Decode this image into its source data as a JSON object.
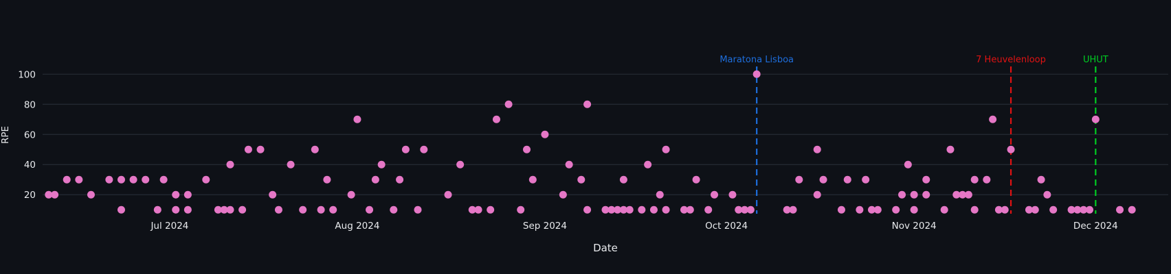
{
  "colors": {
    "background": "#0e1117",
    "grid": "#262b35",
    "tick_text": "#e8eaed",
    "axis_title_text": "#e8eaed"
  },
  "chart_data": {
    "type": "scatter",
    "title": "",
    "xlabel": "Date",
    "ylabel": "RPE",
    "legend": false,
    "grid": true,
    "marker_color": "#e577c6",
    "x_range": [
      "2024-06-10",
      "2024-12-13"
    ],
    "ylim": [
      6.0,
      106.5
    ],
    "yticks": [
      20,
      40,
      60,
      80,
      100
    ],
    "xticks": [
      {
        "date": "2024-07-01",
        "label": "Jul 2024"
      },
      {
        "date": "2024-08-01",
        "label": "Aug 2024"
      },
      {
        "date": "2024-09-01",
        "label": "Sep 2024"
      },
      {
        "date": "2024-10-01",
        "label": "Oct 2024"
      },
      {
        "date": "2024-11-01",
        "label": "Nov 2024"
      },
      {
        "date": "2024-12-01",
        "label": "Dec 2024"
      }
    ],
    "events": [
      {
        "label": "Maratona Lisboa",
        "date": "2024-10-06",
        "color": "#1e6edc"
      },
      {
        "label": "7 Heuvelenloop",
        "date": "2024-11-17",
        "color": "#e01212"
      },
      {
        "label": "UHUT",
        "date": "2024-12-01",
        "color": "#00cc22"
      }
    ],
    "points": [
      {
        "date": "2024-06-11",
        "rpe": 20
      },
      {
        "date": "2024-06-12",
        "rpe": 20
      },
      {
        "date": "2024-06-14",
        "rpe": 30
      },
      {
        "date": "2024-06-16",
        "rpe": 30
      },
      {
        "date": "2024-06-18",
        "rpe": 20
      },
      {
        "date": "2024-06-21",
        "rpe": 30
      },
      {
        "date": "2024-06-23",
        "rpe": 10
      },
      {
        "date": "2024-06-23",
        "rpe": 30
      },
      {
        "date": "2024-06-25",
        "rpe": 30
      },
      {
        "date": "2024-06-27",
        "rpe": 30
      },
      {
        "date": "2024-06-29",
        "rpe": 10
      },
      {
        "date": "2024-06-30",
        "rpe": 30
      },
      {
        "date": "2024-07-02",
        "rpe": 20
      },
      {
        "date": "2024-07-02",
        "rpe": 10
      },
      {
        "date": "2024-07-04",
        "rpe": 10
      },
      {
        "date": "2024-07-04",
        "rpe": 20
      },
      {
        "date": "2024-07-07",
        "rpe": 30
      },
      {
        "date": "2024-07-09",
        "rpe": 10
      },
      {
        "date": "2024-07-10",
        "rpe": 10
      },
      {
        "date": "2024-07-11",
        "rpe": 10
      },
      {
        "date": "2024-07-11",
        "rpe": 40
      },
      {
        "date": "2024-07-13",
        "rpe": 10
      },
      {
        "date": "2024-07-14",
        "rpe": 50
      },
      {
        "date": "2024-07-16",
        "rpe": 50
      },
      {
        "date": "2024-07-18",
        "rpe": 20
      },
      {
        "date": "2024-07-19",
        "rpe": 10
      },
      {
        "date": "2024-07-21",
        "rpe": 40
      },
      {
        "date": "2024-07-23",
        "rpe": 10
      },
      {
        "date": "2024-07-25",
        "rpe": 50
      },
      {
        "date": "2024-07-26",
        "rpe": 10
      },
      {
        "date": "2024-07-27",
        "rpe": 30
      },
      {
        "date": "2024-07-28",
        "rpe": 10
      },
      {
        "date": "2024-07-31",
        "rpe": 20
      },
      {
        "date": "2024-08-01",
        "rpe": 70
      },
      {
        "date": "2024-08-03",
        "rpe": 10
      },
      {
        "date": "2024-08-04",
        "rpe": 30
      },
      {
        "date": "2024-08-05",
        "rpe": 40
      },
      {
        "date": "2024-08-07",
        "rpe": 10
      },
      {
        "date": "2024-08-08",
        "rpe": 30
      },
      {
        "date": "2024-08-09",
        "rpe": 50
      },
      {
        "date": "2024-08-11",
        "rpe": 10
      },
      {
        "date": "2024-08-12",
        "rpe": 50
      },
      {
        "date": "2024-08-16",
        "rpe": 20
      },
      {
        "date": "2024-08-18",
        "rpe": 40
      },
      {
        "date": "2024-08-20",
        "rpe": 10
      },
      {
        "date": "2024-08-21",
        "rpe": 10
      },
      {
        "date": "2024-08-23",
        "rpe": 10
      },
      {
        "date": "2024-08-24",
        "rpe": 70
      },
      {
        "date": "2024-08-26",
        "rpe": 80
      },
      {
        "date": "2024-08-28",
        "rpe": 10
      },
      {
        "date": "2024-08-29",
        "rpe": 50
      },
      {
        "date": "2024-08-30",
        "rpe": 30
      },
      {
        "date": "2024-09-01",
        "rpe": 60
      },
      {
        "date": "2024-09-04",
        "rpe": 20
      },
      {
        "date": "2024-09-05",
        "rpe": 40
      },
      {
        "date": "2024-09-07",
        "rpe": 30
      },
      {
        "date": "2024-09-08",
        "rpe": 10
      },
      {
        "date": "2024-09-08",
        "rpe": 80
      },
      {
        "date": "2024-09-11",
        "rpe": 10
      },
      {
        "date": "2024-09-12",
        "rpe": 10
      },
      {
        "date": "2024-09-13",
        "rpe": 10
      },
      {
        "date": "2024-09-14",
        "rpe": 10
      },
      {
        "date": "2024-09-14",
        "rpe": 30
      },
      {
        "date": "2024-09-15",
        "rpe": 10
      },
      {
        "date": "2024-09-17",
        "rpe": 10
      },
      {
        "date": "2024-09-18",
        "rpe": 40
      },
      {
        "date": "2024-09-19",
        "rpe": 10
      },
      {
        "date": "2024-09-20",
        "rpe": 20
      },
      {
        "date": "2024-09-21",
        "rpe": 10
      },
      {
        "date": "2024-09-21",
        "rpe": 50
      },
      {
        "date": "2024-09-24",
        "rpe": 10
      },
      {
        "date": "2024-09-25",
        "rpe": 10
      },
      {
        "date": "2024-09-26",
        "rpe": 30
      },
      {
        "date": "2024-09-28",
        "rpe": 10
      },
      {
        "date": "2024-09-29",
        "rpe": 20
      },
      {
        "date": "2024-10-02",
        "rpe": 20
      },
      {
        "date": "2024-10-03",
        "rpe": 10
      },
      {
        "date": "2024-10-04",
        "rpe": 10
      },
      {
        "date": "2024-10-05",
        "rpe": 10
      },
      {
        "date": "2024-10-06",
        "rpe": 100
      },
      {
        "date": "2024-10-11",
        "rpe": 10
      },
      {
        "date": "2024-10-12",
        "rpe": 10
      },
      {
        "date": "2024-10-13",
        "rpe": 30
      },
      {
        "date": "2024-10-16",
        "rpe": 20
      },
      {
        "date": "2024-10-16",
        "rpe": 50
      },
      {
        "date": "2024-10-17",
        "rpe": 30
      },
      {
        "date": "2024-10-20",
        "rpe": 10
      },
      {
        "date": "2024-10-21",
        "rpe": 30
      },
      {
        "date": "2024-10-23",
        "rpe": 10
      },
      {
        "date": "2024-10-24",
        "rpe": 30
      },
      {
        "date": "2024-10-25",
        "rpe": 10
      },
      {
        "date": "2024-10-26",
        "rpe": 10
      },
      {
        "date": "2024-10-29",
        "rpe": 10
      },
      {
        "date": "2024-10-30",
        "rpe": 20
      },
      {
        "date": "2024-10-31",
        "rpe": 40
      },
      {
        "date": "2024-11-01",
        "rpe": 10
      },
      {
        "date": "2024-11-01",
        "rpe": 20
      },
      {
        "date": "2024-11-03",
        "rpe": 20
      },
      {
        "date": "2024-11-03",
        "rpe": 30
      },
      {
        "date": "2024-11-06",
        "rpe": 10
      },
      {
        "date": "2024-11-07",
        "rpe": 50
      },
      {
        "date": "2024-11-08",
        "rpe": 20
      },
      {
        "date": "2024-11-09",
        "rpe": 20
      },
      {
        "date": "2024-11-10",
        "rpe": 20
      },
      {
        "date": "2024-11-11",
        "rpe": 30
      },
      {
        "date": "2024-11-11",
        "rpe": 10
      },
      {
        "date": "2024-11-13",
        "rpe": 30
      },
      {
        "date": "2024-11-14",
        "rpe": 70
      },
      {
        "date": "2024-11-15",
        "rpe": 10
      },
      {
        "date": "2024-11-16",
        "rpe": 10
      },
      {
        "date": "2024-11-17",
        "rpe": 50
      },
      {
        "date": "2024-11-20",
        "rpe": 10
      },
      {
        "date": "2024-11-21",
        "rpe": 10
      },
      {
        "date": "2024-11-22",
        "rpe": 30
      },
      {
        "date": "2024-11-23",
        "rpe": 20
      },
      {
        "date": "2024-11-24",
        "rpe": 10
      },
      {
        "date": "2024-11-27",
        "rpe": 10
      },
      {
        "date": "2024-11-28",
        "rpe": 10
      },
      {
        "date": "2024-11-29",
        "rpe": 10
      },
      {
        "date": "2024-11-30",
        "rpe": 10
      },
      {
        "date": "2024-12-01",
        "rpe": 70
      },
      {
        "date": "2024-12-05",
        "rpe": 10
      },
      {
        "date": "2024-12-07",
        "rpe": 10
      }
    ]
  }
}
